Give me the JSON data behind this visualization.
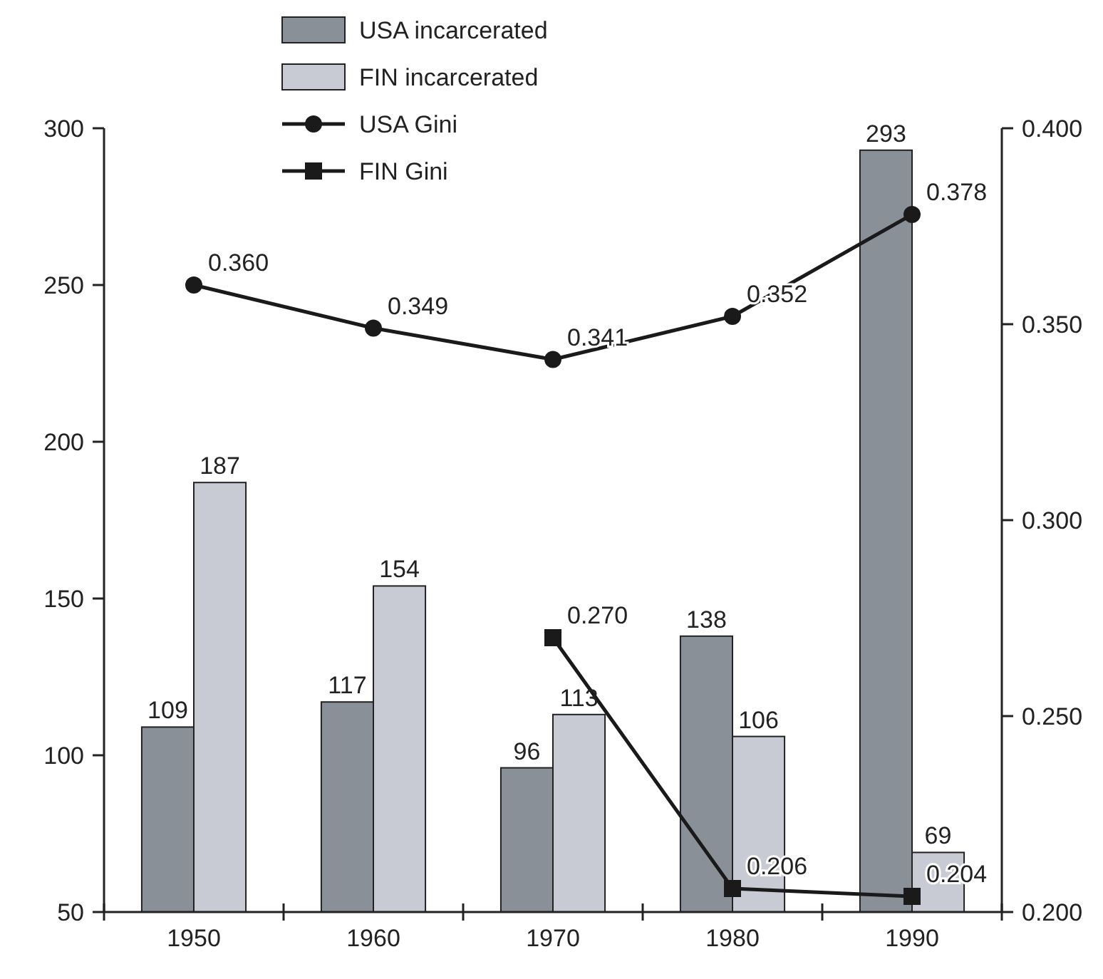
{
  "chart_data": {
    "type": "bar",
    "categories": [
      "1950",
      "1960",
      "1970",
      "1980",
      "1990"
    ],
    "series": [
      {
        "name": "USA incarcerated",
        "color": "#8a9097",
        "values": [
          109,
          117,
          96,
          138,
          293
        ],
        "value_labels": [
          "109",
          "117",
          "96",
          "138",
          "293"
        ]
      },
      {
        "name": "FIN incarcerated",
        "color": "#c8cbd3",
        "values": [
          187,
          154,
          113,
          106,
          69
        ],
        "value_labels": [
          "187",
          "154",
          "113",
          "106",
          "69"
        ]
      },
      {
        "name": "USA Gini",
        "type": "line",
        "axis": "y2",
        "color": "#1a1a1a",
        "marker": "circle",
        "line_style": "solid",
        "values": [
          0.36,
          0.349,
          0.341,
          0.352,
          0.378
        ],
        "value_labels": [
          "0.360",
          "0.349",
          "0.341",
          "0.352",
          "0.378"
        ]
      },
      {
        "name": "FIN Gini",
        "type": "line",
        "axis": "y2",
        "color": "#1a1a1a",
        "marker": "square",
        "line_style": "solid",
        "values": [
          null,
          null,
          0.27,
          0.206,
          0.204
        ],
        "value_labels": [
          null,
          null,
          "0.270",
          "0.206",
          "0.204"
        ]
      }
    ],
    "ylim": [
      50,
      300
    ],
    "yticks": [
      50,
      100,
      150,
      200,
      250,
      300
    ],
    "y2lim": [
      0.2,
      0.4
    ],
    "y2ticks": [
      {
        "value": 0.2,
        "label": "0.200"
      },
      {
        "value": 0.25,
        "label": "0.250"
      },
      {
        "value": 0.3,
        "label": "0.300"
      },
      {
        "value": 0.35,
        "label": "0.350"
      },
      {
        "value": 0.4,
        "label": "0.400"
      }
    ],
    "grid": false,
    "legend": "top left"
  }
}
